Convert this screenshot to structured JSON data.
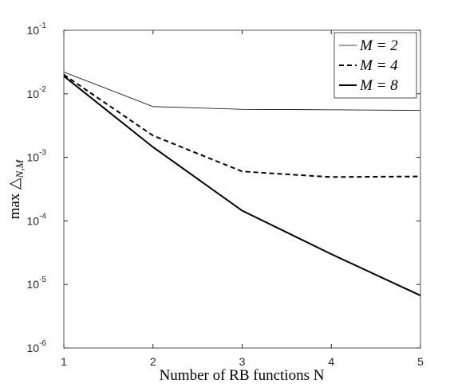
{
  "chart_data": {
    "type": "line",
    "x_label": "Number of RB functions N",
    "y_label": "max △",
    "y_label_sub": "N,M",
    "x": [
      1,
      2,
      3,
      4,
      5
    ],
    "series": [
      {
        "name": "M = 2",
        "color": "#000000",
        "line_width": 0.8,
        "dash": "none",
        "values": [
          0.022,
          0.0063,
          0.0057,
          0.0056,
          0.0055
        ]
      },
      {
        "name": "M = 4",
        "color": "#000000",
        "line_width": 2,
        "dash": "6 4",
        "values": [
          0.02,
          0.0022,
          0.0006,
          0.00049,
          0.0005
        ]
      },
      {
        "name": "M = 8",
        "color": "#000000",
        "line_width": 2,
        "dash": "none",
        "values": [
          0.019,
          0.00145,
          0.000145,
          3e-05,
          6.7e-06
        ]
      }
    ],
    "xlim": [
      1,
      5
    ],
    "xticks": [
      1,
      2,
      3,
      4,
      5
    ],
    "ylim": [
      1e-06,
      0.1
    ],
    "log_y": true,
    "yticks": [
      {
        "value": 1e-06,
        "label": "10",
        "exponent": "-6"
      },
      {
        "value": 1e-05,
        "label": "10",
        "exponent": "-5"
      },
      {
        "value": 0.0001,
        "label": "10",
        "exponent": "-4"
      },
      {
        "value": 0.001,
        "label": "10",
        "exponent": "-3"
      },
      {
        "value": 0.01,
        "label": "10",
        "exponent": "-2"
      },
      {
        "value": 0.1,
        "label": "10",
        "exponent": "-1"
      }
    ],
    "legend": "top-right",
    "grid": false
  }
}
